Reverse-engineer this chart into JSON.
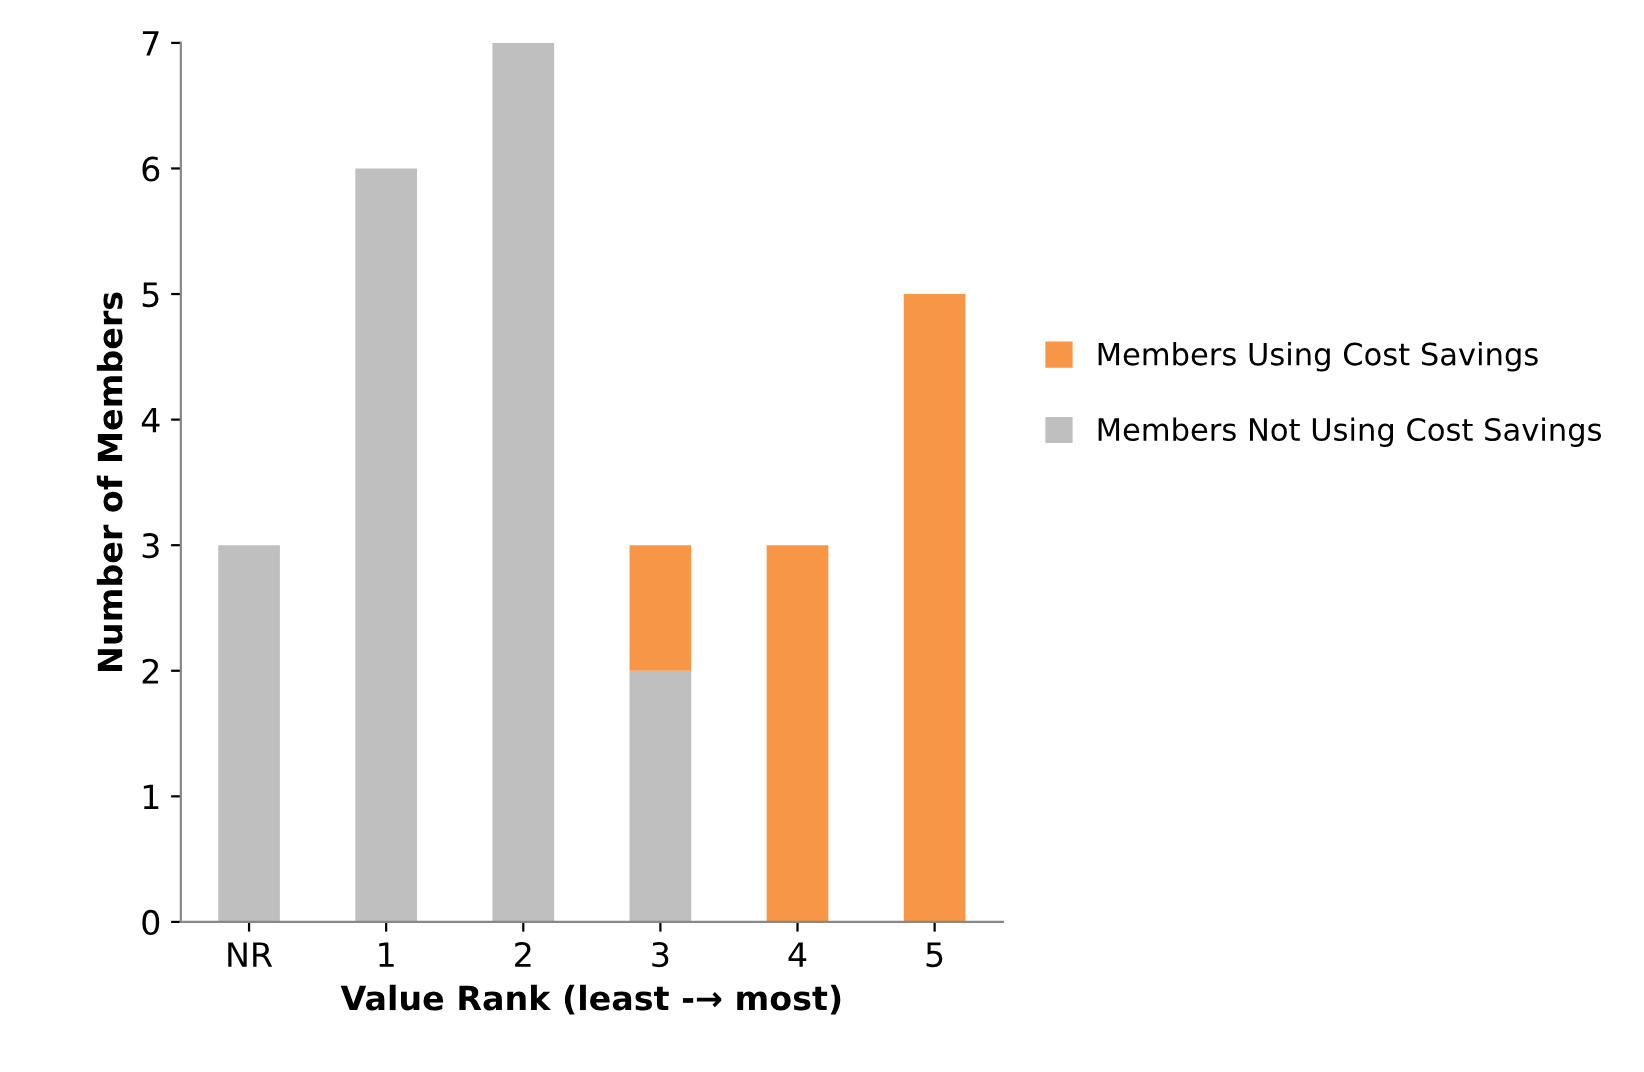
{
  "chart_data": {
    "type": "bar",
    "stacked": true,
    "xlabel": "Value Rank (least -→ most)",
    "ylabel": "Number of Members",
    "categories": [
      "NR",
      "1",
      "2",
      "3",
      "4",
      "5"
    ],
    "series": [
      {
        "name": "Members Not Using Cost Savings",
        "color": "#bfbfbf",
        "values": [
          3,
          6,
          7,
          2,
          0,
          0
        ]
      },
      {
        "name": "Members Using Cost Savings",
        "color": "#f79646",
        "values": [
          0,
          0,
          0,
          1,
          3,
          5
        ]
      }
    ],
    "ylim": [
      0,
      7
    ],
    "yticks": [
      0,
      1,
      2,
      3,
      4,
      5,
      6,
      7
    ],
    "grid": false,
    "legend": "right"
  }
}
